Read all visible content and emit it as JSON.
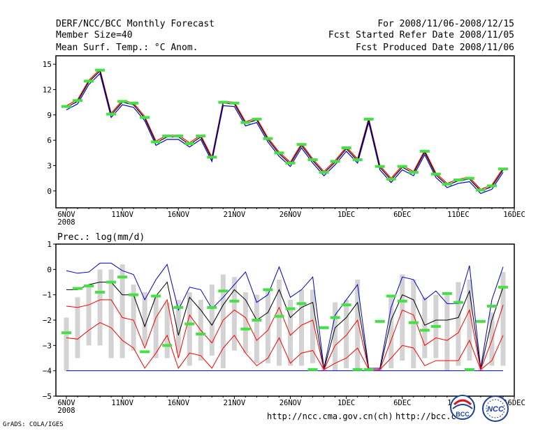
{
  "header": {
    "title": "DERF/NCC/BCC Monthly Forecast",
    "member": "Member Size=40",
    "variable": "Mean Surf. Temp.: °C Anom.",
    "period": "For 2008/11/06-2008/12/15",
    "refer": "Fcst Started Refer Date 2008/11/05",
    "produced": "Fcst Produced Date 2008/11/06"
  },
  "footer": {
    "url1": "http://ncc.cma.gov.cn(ch)",
    "url2": "http://bcc.c",
    "credit": "GrADS: COLA/IGES",
    "logo1": "BCC",
    "logo2": "NCC"
  },
  "chart_data": [
    {
      "type": "line",
      "title": "Mean Surf. Temp.: °C Anom.",
      "x_ticks": [
        "6NOV",
        "11NOV",
        "16NOV",
        "21NOV",
        "26NOV",
        "1DEC",
        "6DEC",
        "11DEC",
        "16DEC"
      ],
      "x_tick_sub": "2008",
      "x_range": [
        0,
        40
      ],
      "ylim": [
        -2,
        16
      ],
      "y_ticks": [
        0,
        3,
        6,
        9,
        12,
        15
      ],
      "series": [
        {
          "name": "upper",
          "color": "#ff0000",
          "values": [
            10.1,
            10.8,
            13.1,
            14.4,
            9.2,
            10.7,
            10.4,
            8.8,
            5.9,
            6.6,
            6.6,
            5.7,
            6.6,
            4.0,
            10.6,
            10.5,
            8.2,
            8.6,
            6.3,
            4.6,
            3.4,
            5.6,
            3.8,
            2.3,
            3.6,
            5.2,
            3.8,
            8.6,
            3.0,
            1.5,
            3.0,
            2.3,
            4.8,
            2.1,
            0.9,
            1.4,
            1.6,
            0.2,
            0.7,
            2.7
          ]
        },
        {
          "name": "ensemble mean",
          "color": "#000000",
          "values": [
            9.9,
            10.6,
            12.9,
            14.2,
            9.0,
            10.5,
            10.2,
            8.6,
            5.7,
            6.4,
            6.4,
            5.5,
            6.4,
            3.8,
            10.4,
            10.3,
            8.0,
            8.4,
            6.1,
            4.4,
            3.2,
            5.4,
            3.6,
            2.1,
            3.4,
            5.0,
            3.6,
            8.4,
            2.8,
            1.3,
            2.8,
            2.1,
            4.6,
            1.9,
            0.7,
            1.2,
            1.4,
            0.0,
            0.5,
            2.5
          ]
        },
        {
          "name": "lower",
          "color": "#0000cc",
          "values": [
            9.6,
            10.3,
            12.6,
            13.9,
            8.7,
            10.2,
            9.9,
            8.3,
            5.4,
            6.1,
            6.1,
            5.2,
            6.1,
            3.5,
            10.1,
            10.0,
            7.7,
            8.1,
            5.8,
            4.1,
            2.9,
            5.1,
            3.3,
            1.8,
            3.1,
            4.7,
            3.3,
            8.1,
            2.5,
            1.0,
            2.5,
            1.8,
            4.3,
            1.6,
            0.4,
            0.9,
            1.1,
            -0.3,
            0.2,
            2.2
          ]
        }
      ],
      "observed_markers": [
        10.0,
        10.7,
        13.0,
        14.3,
        9.1,
        10.6,
        10.4,
        8.7,
        5.8,
        6.5,
        6.5,
        5.6,
        6.5,
        4.0,
        10.5,
        10.4,
        8.1,
        8.5,
        6.2,
        4.5,
        3.3,
        5.5,
        3.7,
        2.2,
        3.5,
        5.1,
        3.7,
        8.5,
        2.9,
        1.4,
        2.9,
        2.2,
        4.7,
        2.0,
        0.8,
        1.3,
        1.5,
        0.1,
        0.6,
        2.6
      ]
    },
    {
      "type": "line",
      "title": "Prec.: log(mm/d)",
      "x_ticks": [
        "6NOV",
        "11NOV",
        "16NOV",
        "21NOV",
        "26NOV",
        "1DEC",
        "6DEC",
        "11DEC",
        "16DEC"
      ],
      "x_tick_sub": "2008",
      "x_range": [
        0,
        40
      ],
      "ylim": [
        -5,
        1
      ],
      "y_ticks": [
        1,
        0,
        -1,
        -2,
        -3,
        -4,
        -5
      ],
      "y_tick_labels": [
        "1",
        "0",
        "−1",
        "−2",
        "−3",
        "−4",
        "−5"
      ],
      "series": [
        {
          "name": "max",
          "color": "#0000cc",
          "values": [
            -0.05,
            -0.15,
            -0.1,
            0.25,
            0.25,
            -0.05,
            -0.2,
            -1.2,
            -0.4,
            0.2,
            -1.6,
            -0.7,
            -0.8,
            -1.55,
            -1.1,
            -0.6,
            -0.1,
            -1.3,
            -1.0,
            0.1,
            -1.1,
            -0.8,
            -0.3,
            -3.9,
            -1.8,
            -1.2,
            -0.6,
            -3.9,
            -3.9,
            -1.5,
            -0.3,
            -0.4,
            -1.2,
            -0.85,
            -1.35,
            -1.35,
            0.15,
            -3.9,
            -1.2,
            0.1
          ]
        },
        {
          "name": "median",
          "color": "#000000",
          "values": [
            -0.8,
            -0.8,
            -0.6,
            -0.5,
            -0.5,
            -1.0,
            -1.0,
            -2.25,
            -1.05,
            -0.5,
            -2.6,
            -1.1,
            -1.6,
            -2.2,
            -1.4,
            -0.8,
            -1.2,
            -2.0,
            -1.7,
            -0.8,
            -1.9,
            -1.5,
            -1.3,
            -3.95,
            -2.3,
            -1.9,
            -1.3,
            -3.95,
            -3.95,
            -2.0,
            -1.0,
            -1.2,
            -2.2,
            -2.0,
            -2.0,
            -1.9,
            -0.85,
            -3.95,
            -2.0,
            -0.7
          ]
        },
        {
          "name": "q25",
          "color": "#ff0000",
          "values": [
            -1.45,
            -1.5,
            -1.4,
            -1.2,
            -1.2,
            -1.9,
            -2.0,
            -3.1,
            -1.9,
            -1.2,
            -3.5,
            -1.8,
            -2.4,
            -2.9,
            -2.0,
            -1.6,
            -1.9,
            -2.8,
            -2.4,
            -1.5,
            -2.6,
            -2.2,
            -2.0,
            -3.95,
            -3.0,
            -2.6,
            -2.0,
            -3.95,
            -3.95,
            -2.8,
            -1.6,
            -1.8,
            -3.0,
            -2.7,
            -2.8,
            -2.5,
            -1.6,
            -3.95,
            -2.8,
            -1.4
          ]
        },
        {
          "name": "min",
          "color": "#ff0000",
          "values": [
            -2.7,
            -2.75,
            -2.4,
            -2.1,
            -2.3,
            -2.8,
            -3.1,
            -3.9,
            -3.3,
            -2.6,
            -3.9,
            -3.3,
            -3.4,
            -3.9,
            -3.1,
            -2.6,
            -3.3,
            -3.8,
            -3.5,
            -2.7,
            -3.7,
            -3.3,
            -3.2,
            -3.95,
            -3.7,
            -3.5,
            -3.1,
            -3.95,
            -3.95,
            -3.5,
            -3.0,
            -3.1,
            -3.8,
            -3.6,
            -3.6,
            -3.6,
            -2.8,
            -3.95,
            -3.6,
            -2.6
          ]
        }
      ],
      "boxes": [
        [
          -1.9,
          -4.0
        ],
        [
          -1.1,
          -3.5
        ],
        [
          -0.6,
          -3.0
        ],
        [
          0.0,
          -3.0
        ],
        [
          0.0,
          -3.5
        ],
        [
          0.2,
          -3.5
        ],
        [
          -0.6,
          -3.2
        ],
        [
          -0.9,
          -3.0
        ],
        [
          -1.0,
          -3.5
        ],
        [
          -1.3,
          -3.5
        ],
        [
          -1.2,
          -3.3
        ],
        [
          -0.9,
          -3.8
        ],
        [
          -1.2,
          -3.6
        ],
        [
          -0.6,
          -3.4
        ],
        [
          -0.2,
          -3.9
        ],
        [
          -0.3,
          -3.2
        ],
        [
          -0.9,
          -3.3
        ],
        [
          -1.0,
          -3.7
        ],
        [
          -0.8,
          -3.7
        ],
        [
          -0.4,
          -3.8
        ],
        [
          -1.2,
          -3.8
        ],
        [
          -0.8,
          -3.8
        ],
        [
          -0.8,
          -3.7
        ],
        [
          -3.8,
          -4.0
        ],
        [
          -1.3,
          -4.0
        ],
        [
          -1.2,
          -3.9
        ],
        [
          -0.4,
          -4.0
        ],
        [
          -3.9,
          -4.0
        ],
        [
          -3.9,
          -4.0
        ],
        [
          -1.0,
          -3.9
        ],
        [
          -0.2,
          -3.6
        ],
        [
          -0.4,
          -3.9
        ],
        [
          -1.1,
          -3.5
        ],
        [
          -1.0,
          -3.5
        ],
        [
          -0.9,
          -4.0
        ],
        [
          -0.5,
          -3.8
        ],
        [
          -0.4,
          -3.6
        ],
        [
          -3.9,
          -4.0
        ],
        [
          -1.7,
          -3.8
        ],
        [
          -0.1,
          -3.8
        ]
      ],
      "observed_markers": [
        -2.5,
        -0.75,
        -0.65,
        -0.9,
        -0.5,
        -0.3,
        -1.0,
        -3.25,
        -1.05,
        -3.0,
        -1.5,
        -2.15,
        -2.55,
        -1.5,
        -0.85,
        -1.25,
        -2.35,
        -2.0,
        -0.8,
        -1.85,
        -1.55,
        -1.35,
        -3.95,
        -2.3,
        -1.9,
        -1.4,
        -3.95,
        -3.95,
        -2.05,
        -1.05,
        -1.25,
        -2.1,
        -2.4,
        -2.25,
        -0.95,
        -1.3,
        -3.95,
        -2.05,
        -1.45,
        -0.7
      ],
      "baseline": -4
    }
  ]
}
